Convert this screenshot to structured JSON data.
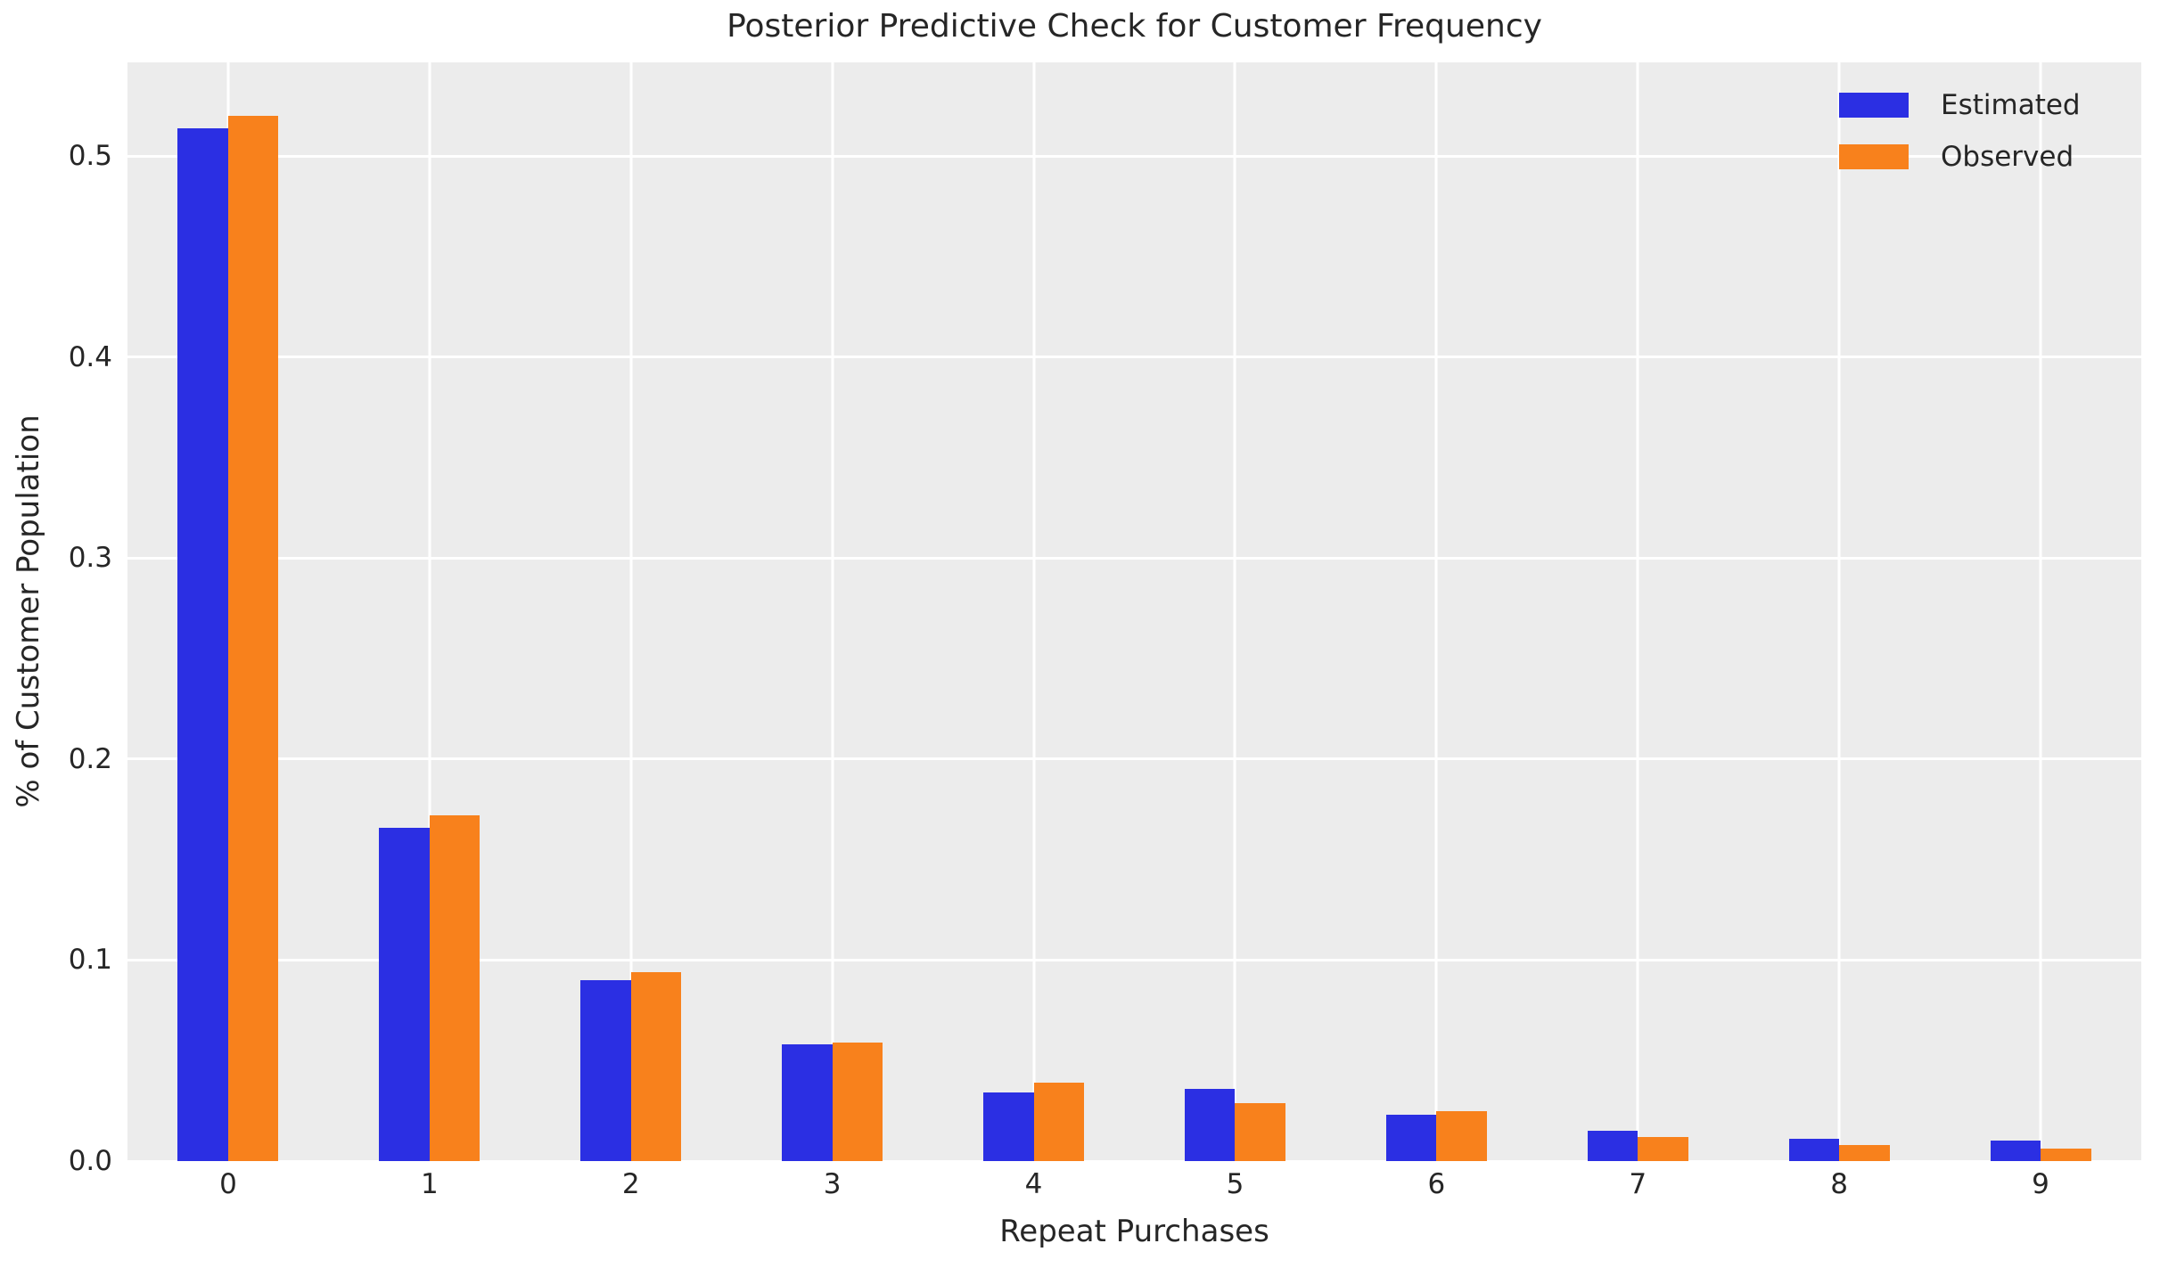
{
  "title": "Posterior Predictive Check for Customer Frequency",
  "chart_data": {
    "type": "bar",
    "title": "Posterior Predictive Check for Customer Frequency",
    "xlabel": "Repeat Purchases",
    "ylabel": "% of Customer Population",
    "categories": [
      "0",
      "1",
      "2",
      "3",
      "4",
      "5",
      "6",
      "7",
      "8",
      "9"
    ],
    "series": [
      {
        "name": "Estimated",
        "color": "#2B2FE3",
        "values": [
          0.514,
          0.166,
          0.09,
          0.058,
          0.034,
          0.036,
          0.023,
          0.015,
          0.011,
          0.01
        ]
      },
      {
        "name": "Observed",
        "color": "#F8811C",
        "values": [
          0.52,
          0.172,
          0.094,
          0.059,
          0.039,
          0.029,
          0.025,
          0.012,
          0.008,
          0.006
        ]
      }
    ],
    "yticks": [
      0.0,
      0.1,
      0.2,
      0.3,
      0.4,
      0.5
    ],
    "ytick_labels": [
      "0.0",
      "0.1",
      "0.2",
      "0.3",
      "0.4",
      "0.5"
    ],
    "ylim": [
      0,
      0.5466
    ],
    "bar_width_category_units": 0.25,
    "grid": true,
    "legend_position": "upper right",
    "colors": {
      "plot_background": "#ECECEC",
      "grid_line": "#FFFFFF",
      "text": "#262626",
      "page_background": "#FFFFFF"
    }
  }
}
